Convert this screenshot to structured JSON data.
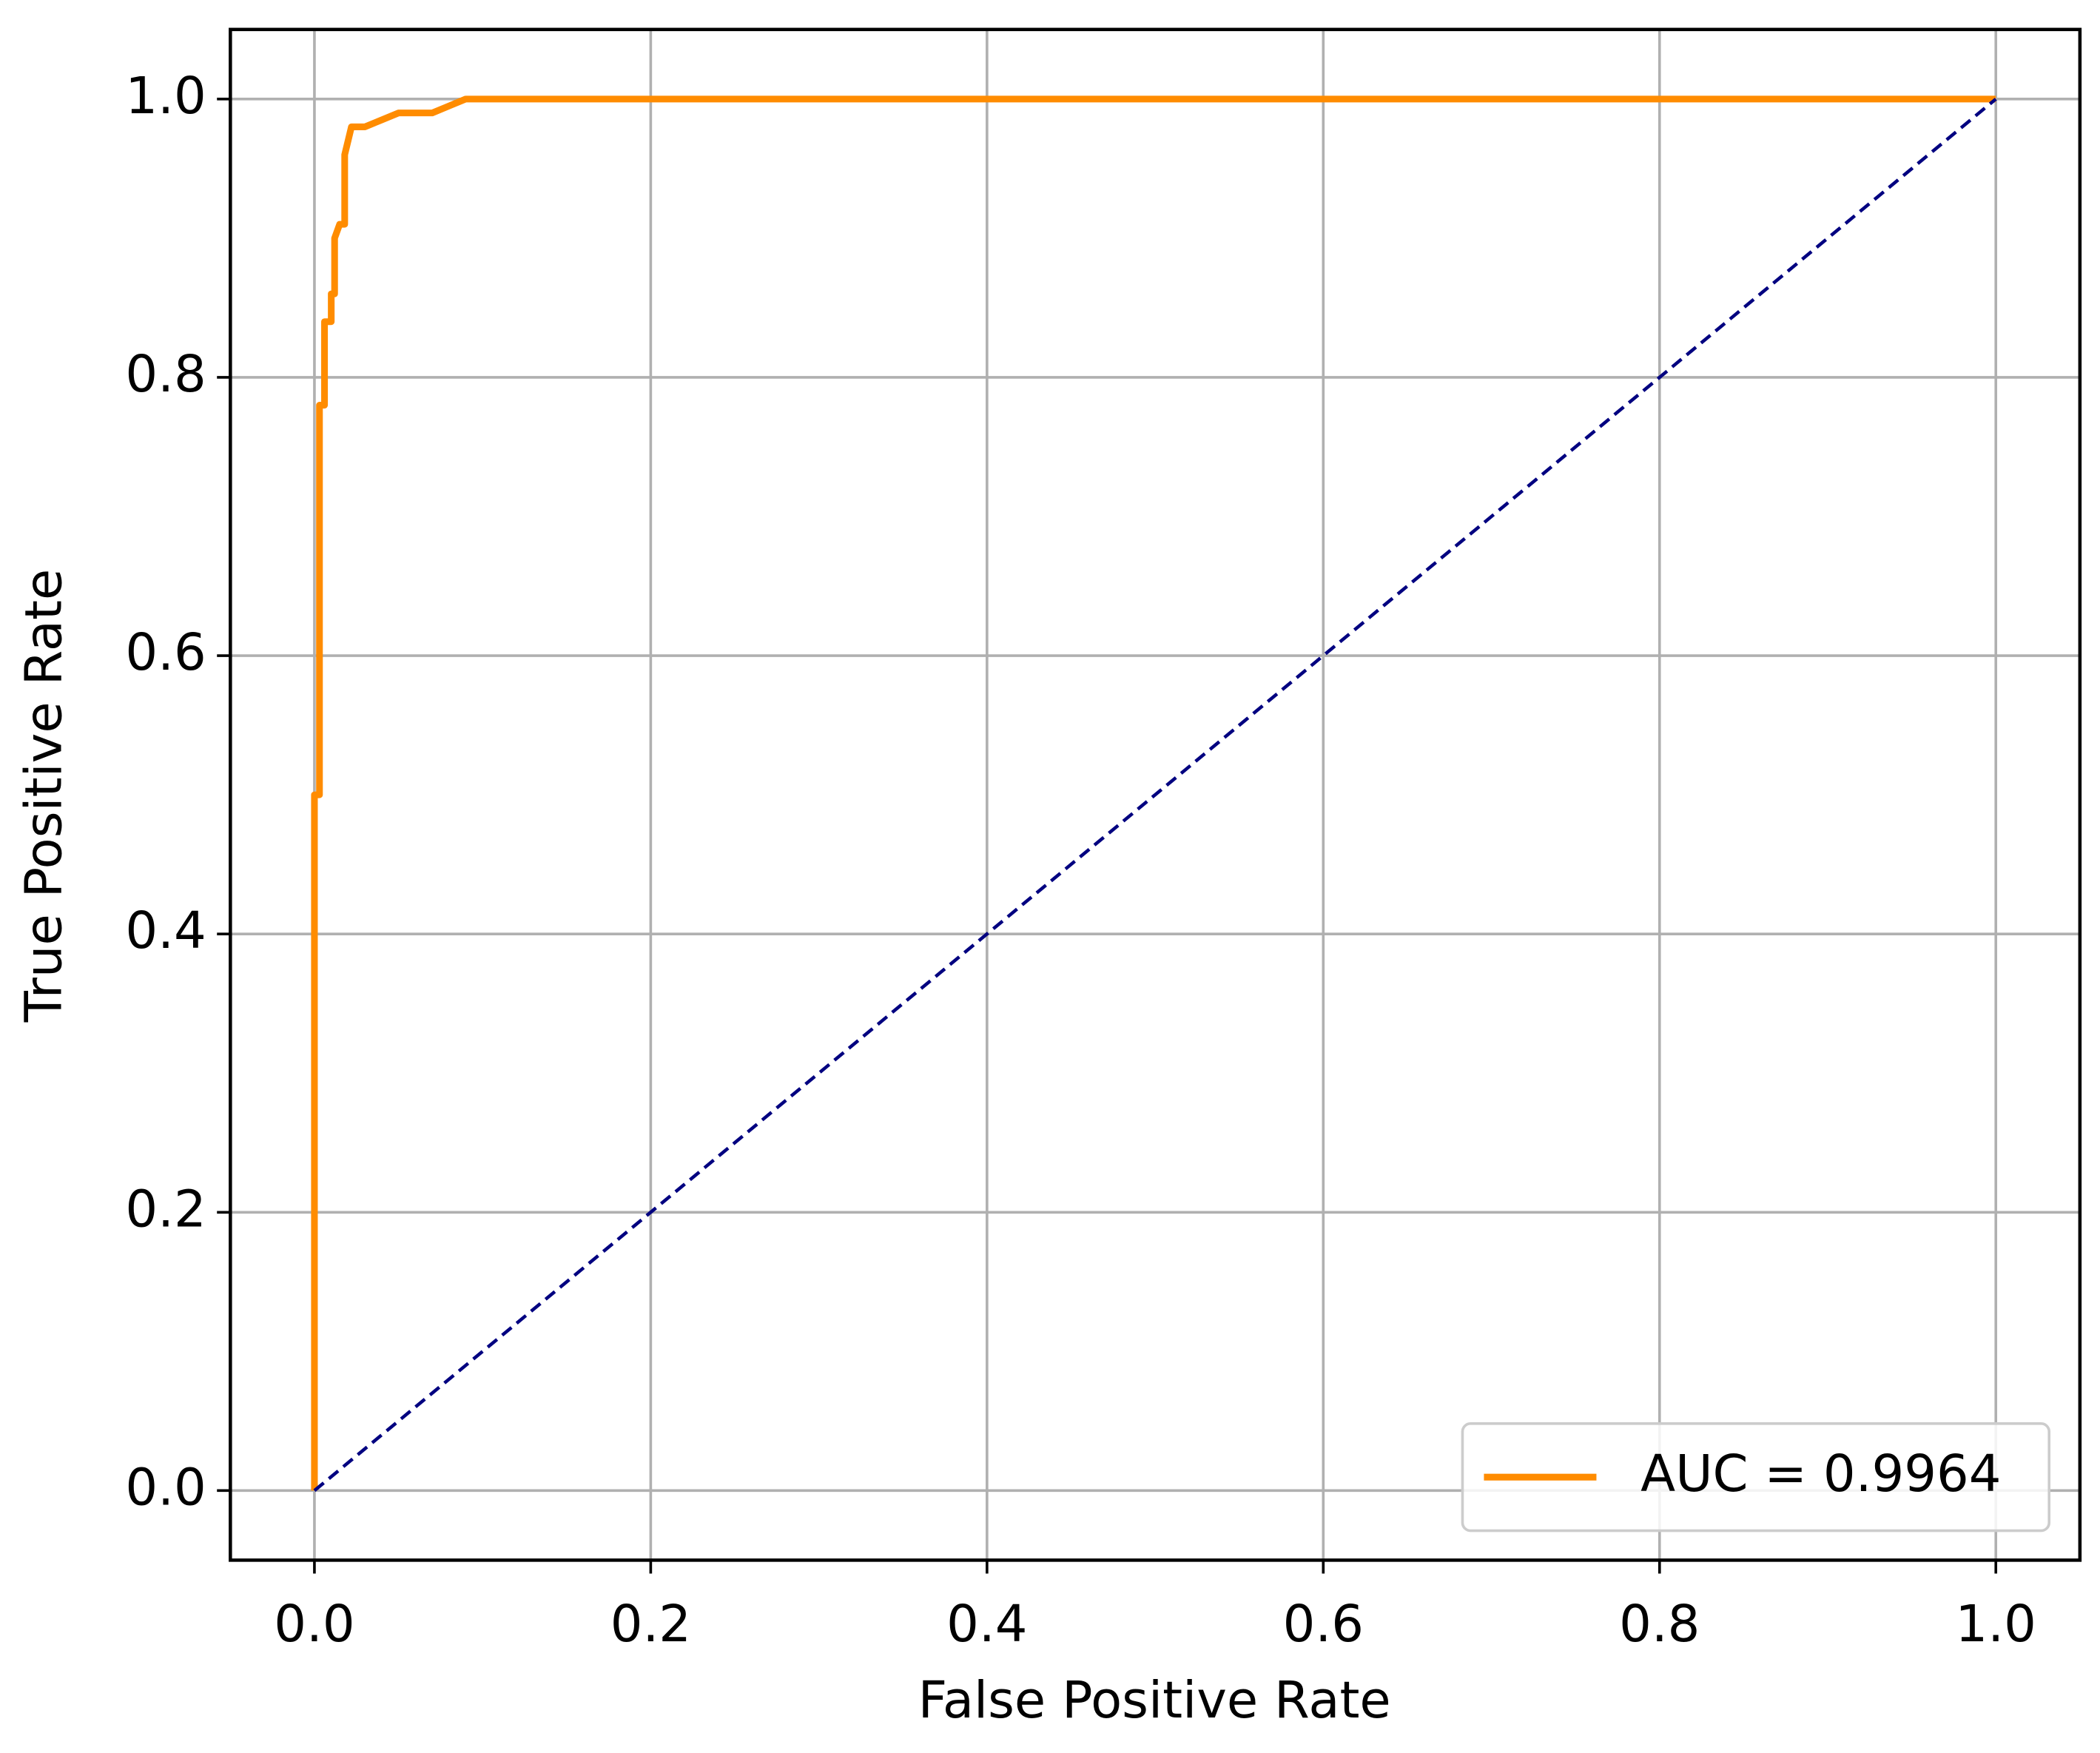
{
  "chart_data": {
    "type": "line",
    "xlabel": "False Positive Rate",
    "ylabel": "True Positive Rate",
    "xlim": [
      -0.05,
      1.05
    ],
    "ylim": [
      -0.05,
      1.05
    ],
    "xticks": [
      {
        "value": 0,
        "label": "0.0"
      },
      {
        "value": 0.2,
        "label": "0.2"
      },
      {
        "value": 0.4,
        "label": "0.4"
      },
      {
        "value": 0.6,
        "label": "0.6"
      },
      {
        "value": 0.8,
        "label": "0.8"
      },
      {
        "value": 1,
        "label": "1.0"
      }
    ],
    "yticks": [
      {
        "value": 0,
        "label": "0.0"
      },
      {
        "value": 0.2,
        "label": "0.2"
      },
      {
        "value": 0.4,
        "label": "0.4"
      },
      {
        "value": 0.6,
        "label": "0.6"
      },
      {
        "value": 0.8,
        "label": "0.8"
      },
      {
        "value": 1,
        "label": "1.0"
      }
    ],
    "grid": true,
    "legend": "lower right",
    "series": [
      {
        "name": "AUC = 0.9964",
        "color": "#ff8c00",
        "x": [
          0,
          0,
          0.003,
          0.003,
          0.006,
          0.006,
          0.01,
          0.01,
          0.012,
          0.012,
          0.015,
          0.018,
          0.018,
          0.02,
          0.022,
          0.03,
          0.04,
          0.05,
          0.07,
          0.08,
          0.09,
          1
        ],
        "values": [
          0,
          0.5,
          0.5,
          0.78,
          0.78,
          0.84,
          0.84,
          0.86,
          0.86,
          0.9,
          0.91,
          0.91,
          0.96,
          0.97,
          0.98,
          0.98,
          0.985,
          0.99,
          0.99,
          0.995,
          1,
          1
        ]
      },
      {
        "color": "#000080",
        "dashed": true,
        "x": [
          0,
          1
        ],
        "values": [
          0,
          1
        ]
      }
    ]
  }
}
